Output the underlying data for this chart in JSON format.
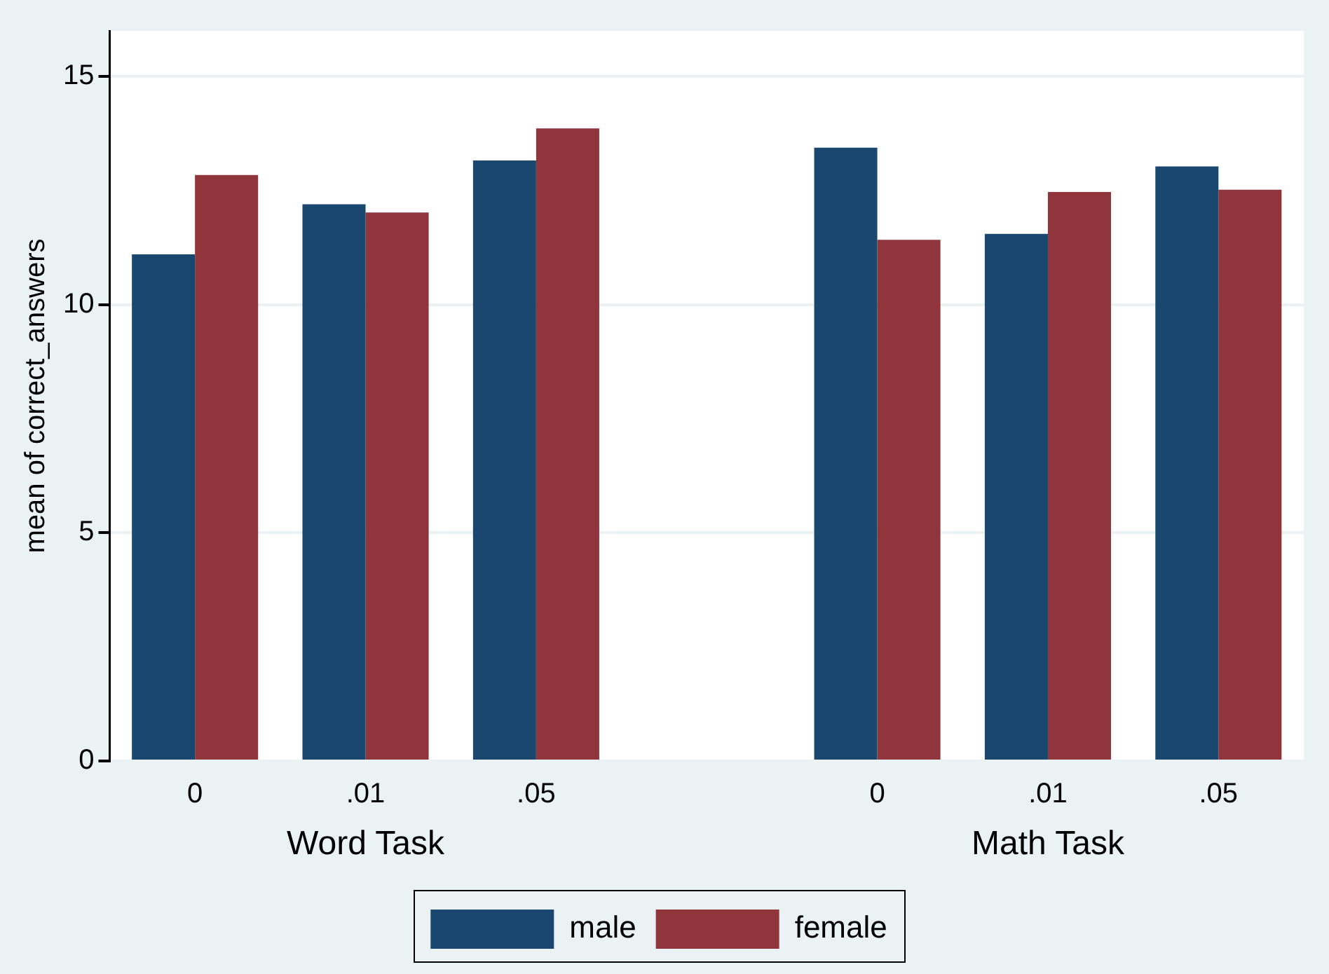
{
  "chart_data": {
    "type": "bar",
    "ylabel": "mean of correct_answers",
    "categories": [
      "0",
      ".01",
      ".05",
      null,
      "0",
      ".01",
      ".05"
    ],
    "series": [
      {
        "name": "male",
        "color": "#1a476f",
        "values": [
          11.1,
          12.2,
          13.16,
          null,
          13.44,
          11.55,
          13.03
        ]
      },
      {
        "name": "female",
        "color": "#90353b",
        "values": [
          12.84,
          12.02,
          13.86,
          null,
          11.42,
          12.47,
          12.52
        ]
      }
    ],
    "annotations": [
      "Word Task",
      "Math Task"
    ],
    "ylim": [
      0,
      16
    ],
    "yticks": [
      0,
      5,
      10,
      15
    ],
    "grid": "y",
    "legend": "bottom"
  }
}
